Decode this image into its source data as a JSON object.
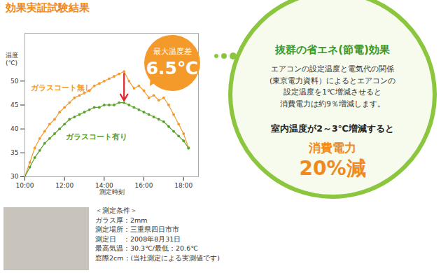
{
  "chart_data": {
    "type": "line",
    "title": "効果実証試験結果",
    "xlabel": "測定時刻",
    "ylabel": "温度\n(℃)",
    "x": [
      10,
      10.25,
      10.5,
      10.75,
      11,
      11.25,
      11.5,
      11.75,
      12,
      12.25,
      12.5,
      12.75,
      13,
      13.25,
      13.5,
      13.75,
      14,
      14.25,
      14.5,
      14.75,
      15,
      15.25,
      15.5,
      15.75,
      16,
      16.25,
      16.5,
      16.75,
      17,
      17.25,
      17.5,
      17.75,
      18,
      18.25
    ],
    "series": [
      {
        "name": "ガラスコート無し",
        "color": "#f39a2a",
        "marker": "circle",
        "values": [
          30,
          33,
          36,
          38,
          39.5,
          41,
          42,
          43.5,
          44.5,
          45.5,
          46.5,
          47,
          47.5,
          48,
          49,
          49.5,
          50,
          50.5,
          51,
          51.5,
          52,
          50,
          48.5,
          49,
          48,
          46.5,
          47,
          46,
          46.5,
          45,
          43,
          41,
          39,
          36
        ]
      },
      {
        "name": "ガラスコート有り",
        "color": "#5aa02c",
        "marker": "circle",
        "values": [
          30,
          32,
          34,
          35.5,
          37,
          38,
          39,
          40,
          41,
          42,
          42.5,
          43,
          43.5,
          44,
          44.5,
          44.5,
          45,
          45,
          45,
          45.5,
          45.5,
          45,
          44.5,
          44,
          43.5,
          43,
          42.5,
          42,
          41.5,
          40.5,
          39.5,
          38.5,
          37.5,
          36
        ]
      }
    ],
    "xlim": [
      10,
      18.75
    ],
    "xticks": [
      {
        "value": 10,
        "label": "10:00"
      },
      {
        "value": 12,
        "label": "12:00"
      },
      {
        "value": 14,
        "label": "14:00"
      },
      {
        "value": 16,
        "label": "16:00"
      },
      {
        "value": 18,
        "label": "18:00"
      }
    ],
    "ylim": [
      30,
      60
    ],
    "yticks": [
      30,
      35,
      40,
      45,
      50
    ],
    "grid": false,
    "annotation": {
      "label": "最大温度差",
      "text": "6.5℃"
    }
  },
  "callout": {
    "heading": "抜群の省エネ(節電)効果",
    "paragraph": [
      "エアコンの設定温度と電気代の関係",
      "(東京電力資料）によるとエアコンの",
      "設定温度を1℃増減させると",
      "消費電力は約9％増減します。"
    ],
    "condition": "室内温度が2～3℃増減すると",
    "key": "消費電力",
    "result": "20%減"
  },
  "conditions": [
    "＜測定条件＞",
    "ガラス厚：2mm",
    "測定場所：三重県四日市市",
    "測定日　：2008年8月31日",
    "最高気温：30.3℃/最低：20.6℃",
    "窓際2cm：(当社測定による実測値です)"
  ]
}
